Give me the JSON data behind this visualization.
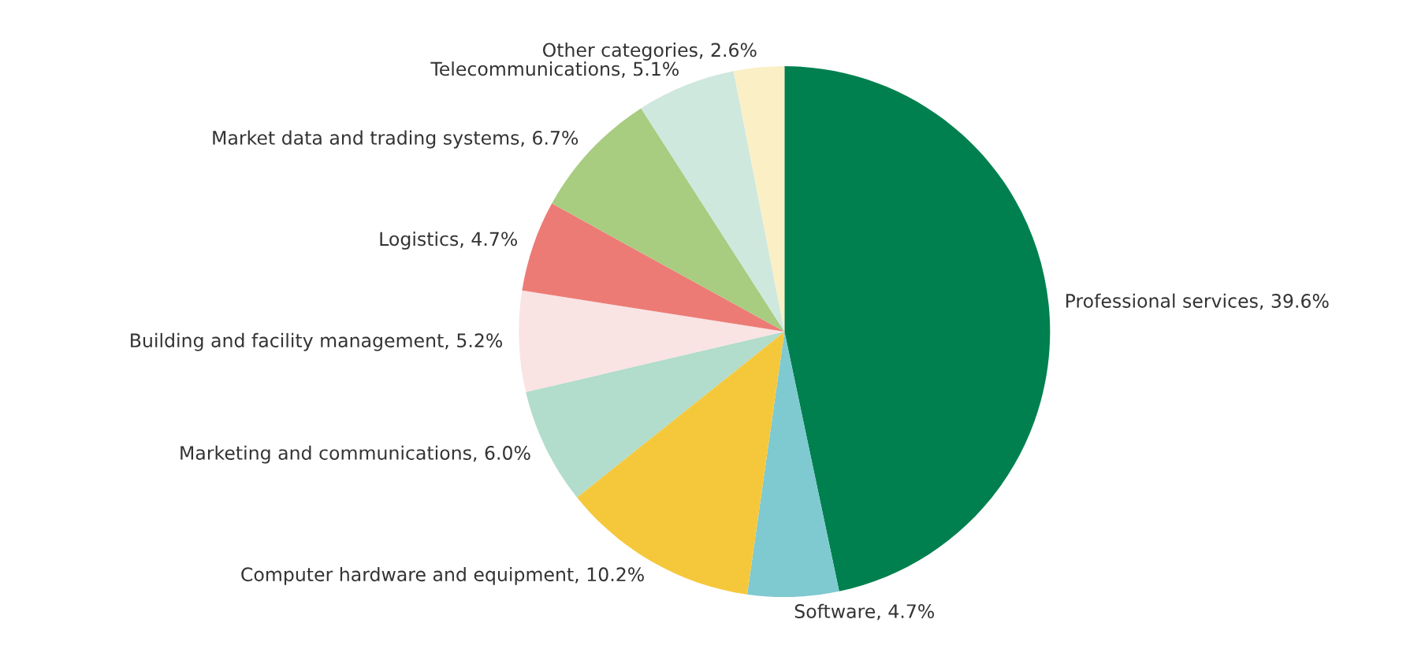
{
  "chart_data": {
    "type": "pie",
    "categories": [
      "Professional services",
      "Software",
      "Computer hardware and equipment",
      "Marketing and communications",
      "Building and facility management",
      "Logistics",
      "Market data and trading systems",
      "Telecommunications",
      "Other categories"
    ],
    "values": [
      39.6,
      4.7,
      10.2,
      6.0,
      5.2,
      4.7,
      6.7,
      5.1,
      2.6
    ],
    "value_labels": [
      "39.6%",
      "4.7%",
      "10.2%",
      "6.0%",
      "5.2%",
      "4.7%",
      "6.7%",
      "5.1%",
      "2.6%"
    ],
    "colors": [
      "#00804f",
      "#7fc9d1",
      "#f5c83c",
      "#b2dccb",
      "#f9e3e3",
      "#ec7b75",
      "#a8cc80",
      "#cfe8de",
      "#fbefc6"
    ]
  }
}
